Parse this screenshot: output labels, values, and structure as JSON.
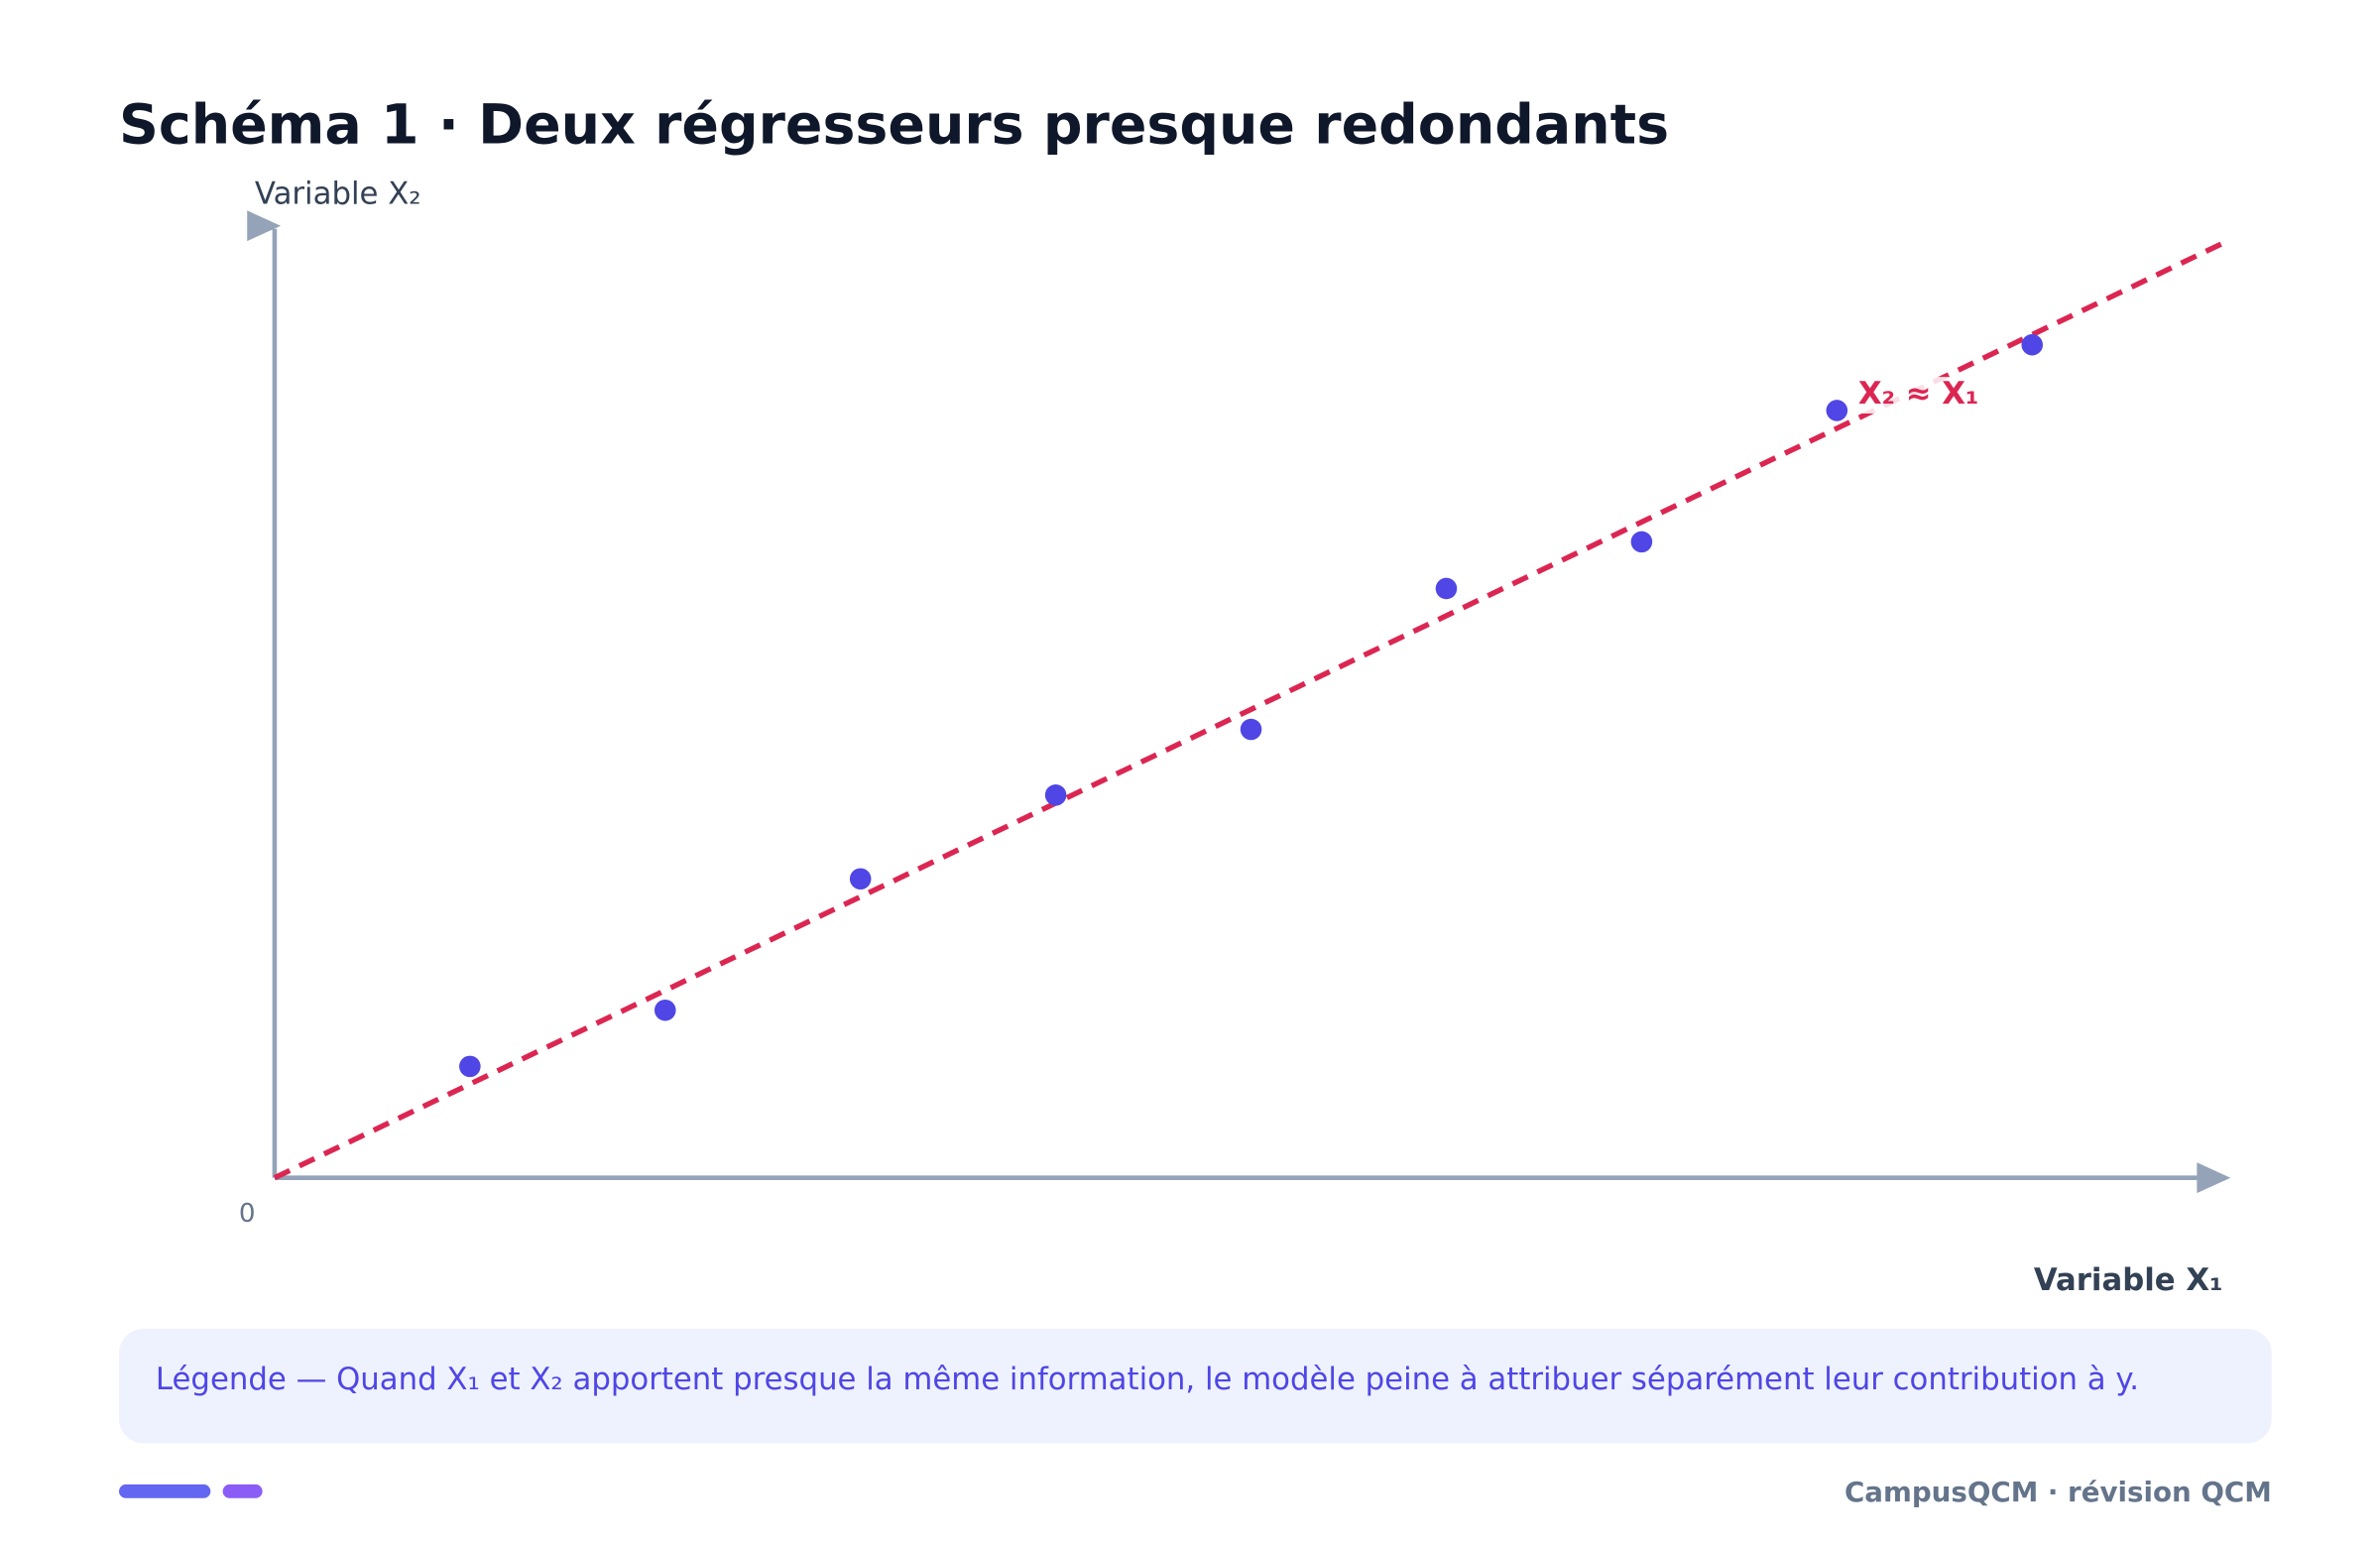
{
  "chart_data": {
    "type": "scatter",
    "title": "Schéma 1 · Deux régresseurs presque redondants",
    "xlabel": "Variable X₁",
    "ylabel": "Variable X₂",
    "xlim": [
      0,
      10
    ],
    "ylim": [
      0,
      10
    ],
    "xticks": [
      0
    ],
    "x": [
      1,
      2,
      3,
      4,
      5,
      6,
      7,
      8,
      9
    ],
    "values": [
      1.17,
      1.76,
      3.14,
      4.02,
      4.71,
      6.19,
      6.68,
      8.06,
      8.75
    ],
    "color": "#4f46e5",
    "fit_line": {
      "x": [
        0,
        10
      ],
      "values": [
        0,
        9.84
      ],
      "color": "#dc2652",
      "label": "X₂ ≈ X₁"
    },
    "caption": "Légende — Quand X₁ et X₂ apportent presque la même information, le modèle peine à attribuer séparément leur contribution à y.",
    "footer": "CampusQCM · révision QCM"
  }
}
